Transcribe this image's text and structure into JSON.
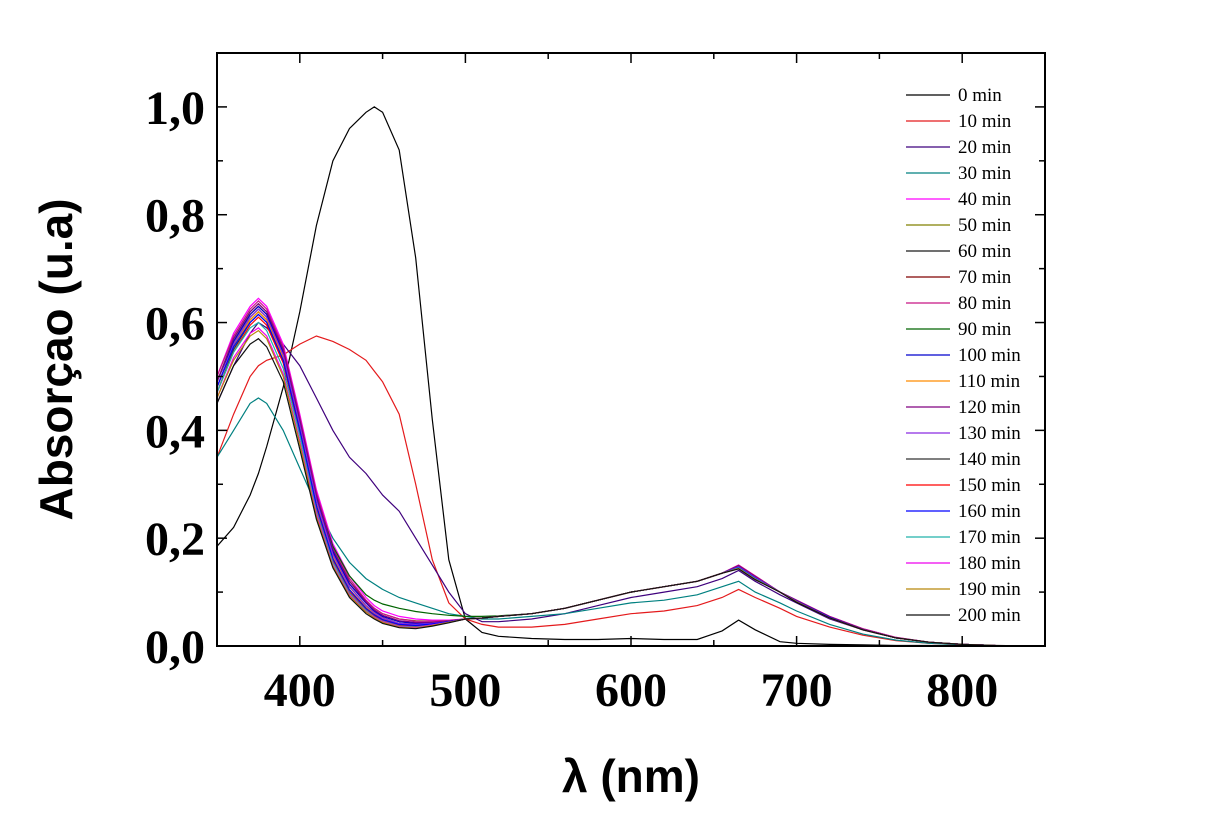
{
  "chart_data": {
    "type": "line",
    "xlabel": "λ (nm)",
    "ylabel": "Absorçao (u.a)",
    "xlim": [
      350,
      850
    ],
    "ylim": [
      0,
      1.1
    ],
    "x_ticks": [
      {
        "value": 400,
        "label": "400"
      },
      {
        "value": 500,
        "label": "500"
      },
      {
        "value": 600,
        "label": "600"
      },
      {
        "value": 700,
        "label": "700"
      },
      {
        "value": 800,
        "label": "800"
      }
    ],
    "y_ticks": [
      {
        "value": 0.0,
        "label": "0,0"
      },
      {
        "value": 0.2,
        "label": "0,2"
      },
      {
        "value": 0.4,
        "label": "0,4"
      },
      {
        "value": 0.6,
        "label": "0,6"
      },
      {
        "value": 0.8,
        "label": "0,8"
      },
      {
        "value": 1.0,
        "label": "1,0"
      }
    ],
    "legend_position": "top-right",
    "x": [
      350,
      360,
      370,
      375,
      380,
      390,
      400,
      410,
      420,
      430,
      440,
      445,
      450,
      460,
      470,
      480,
      490,
      500,
      510,
      520,
      540,
      560,
      580,
      600,
      620,
      640,
      655,
      665,
      675,
      690,
      700,
      720,
      740,
      760,
      780,
      800,
      820,
      850
    ],
    "series": [
      {
        "name": "0 min",
        "color": "#000000",
        "values": [
          0.185,
          0.22,
          0.28,
          0.32,
          0.37,
          0.48,
          0.62,
          0.78,
          0.9,
          0.96,
          0.99,
          1.0,
          0.99,
          0.92,
          0.72,
          0.42,
          0.16,
          0.05,
          0.025,
          0.018,
          0.014,
          0.012,
          0.012,
          0.014,
          0.012,
          0.012,
          0.028,
          0.048,
          0.03,
          0.008,
          0.005,
          0.003,
          0.002,
          0.001,
          0.001,
          0.0,
          0.0,
          0.0
        ]
      },
      {
        "name": "10 min",
        "color": "#e41a1c",
        "values": [
          0.35,
          0.43,
          0.5,
          0.52,
          0.53,
          0.54,
          0.56,
          0.575,
          0.565,
          0.55,
          0.53,
          0.51,
          0.49,
          0.43,
          0.3,
          0.16,
          0.08,
          0.05,
          0.04,
          0.035,
          0.035,
          0.04,
          0.05,
          0.06,
          0.065,
          0.075,
          0.09,
          0.105,
          0.09,
          0.07,
          0.055,
          0.035,
          0.02,
          0.01,
          0.005,
          0.002,
          0.001,
          0.0
        ]
      },
      {
        "name": "20 min",
        "color": "#3f007d",
        "values": [
          0.45,
          0.52,
          0.58,
          0.6,
          0.59,
          0.56,
          0.52,
          0.46,
          0.4,
          0.35,
          0.32,
          0.3,
          0.28,
          0.25,
          0.2,
          0.15,
          0.1,
          0.06,
          0.045,
          0.045,
          0.05,
          0.06,
          0.075,
          0.09,
          0.1,
          0.11,
          0.125,
          0.14,
          0.12,
          0.095,
          0.08,
          0.05,
          0.03,
          0.015,
          0.007,
          0.003,
          0.001,
          0.0
        ]
      },
      {
        "name": "30 min",
        "color": "#008080",
        "values": [
          0.35,
          0.4,
          0.45,
          0.46,
          0.45,
          0.4,
          0.33,
          0.26,
          0.2,
          0.155,
          0.125,
          0.115,
          0.105,
          0.09,
          0.08,
          0.07,
          0.06,
          0.055,
          0.05,
          0.05,
          0.055,
          0.06,
          0.07,
          0.08,
          0.085,
          0.095,
          0.11,
          0.12,
          0.1,
          0.08,
          0.065,
          0.04,
          0.022,
          0.011,
          0.005,
          0.002,
          0.001,
          0.0
        ]
      },
      {
        "name": "40 min",
        "color": "#ff00ff",
        "values": [
          0.5,
          0.58,
          0.63,
          0.645,
          0.63,
          0.56,
          0.43,
          0.29,
          0.19,
          0.13,
          0.09,
          0.075,
          0.065,
          0.055,
          0.05,
          0.048,
          0.048,
          0.05,
          0.052,
          0.055,
          0.06,
          0.07,
          0.085,
          0.1,
          0.11,
          0.12,
          0.135,
          0.15,
          0.13,
          0.1,
          0.085,
          0.055,
          0.032,
          0.016,
          0.007,
          0.003,
          0.001,
          0.0
        ]
      },
      {
        "name": "50 min",
        "color": "#808000",
        "values": [
          0.49,
          0.57,
          0.62,
          0.635,
          0.62,
          0.55,
          0.42,
          0.28,
          0.18,
          0.12,
          0.085,
          0.07,
          0.06,
          0.05,
          0.047,
          0.046,
          0.047,
          0.05,
          0.052,
          0.055,
          0.06,
          0.07,
          0.085,
          0.1,
          0.11,
          0.12,
          0.135,
          0.148,
          0.128,
          0.1,
          0.084,
          0.054,
          0.031,
          0.015,
          0.007,
          0.003,
          0.001,
          0.0
        ]
      },
      {
        "name": "60 min",
        "color": "#1a1a1a",
        "values": [
          0.48,
          0.56,
          0.61,
          0.625,
          0.61,
          0.54,
          0.41,
          0.27,
          0.17,
          0.11,
          0.075,
          0.062,
          0.052,
          0.042,
          0.04,
          0.042,
          0.045,
          0.05,
          0.052,
          0.055,
          0.06,
          0.07,
          0.085,
          0.1,
          0.11,
          0.12,
          0.135,
          0.147,
          0.127,
          0.1,
          0.083,
          0.053,
          0.03,
          0.015,
          0.007,
          0.003,
          0.001,
          0.0
        ]
      },
      {
        "name": "70 min",
        "color": "#800000",
        "values": [
          0.49,
          0.565,
          0.615,
          0.63,
          0.615,
          0.545,
          0.415,
          0.275,
          0.175,
          0.115,
          0.08,
          0.065,
          0.055,
          0.045,
          0.042,
          0.043,
          0.046,
          0.05,
          0.052,
          0.055,
          0.06,
          0.07,
          0.085,
          0.1,
          0.11,
          0.12,
          0.135,
          0.148,
          0.128,
          0.1,
          0.084,
          0.054,
          0.031,
          0.015,
          0.007,
          0.003,
          0.001,
          0.0
        ]
      },
      {
        "name": "80 min",
        "color": "#c71585",
        "values": [
          0.5,
          0.575,
          0.625,
          0.64,
          0.625,
          0.555,
          0.425,
          0.285,
          0.185,
          0.125,
          0.085,
          0.07,
          0.06,
          0.05,
          0.046,
          0.046,
          0.047,
          0.05,
          0.052,
          0.055,
          0.06,
          0.07,
          0.085,
          0.1,
          0.11,
          0.12,
          0.135,
          0.15,
          0.13,
          0.1,
          0.085,
          0.055,
          0.032,
          0.016,
          0.007,
          0.003,
          0.001,
          0.0
        ]
      },
      {
        "name": "90 min",
        "color": "#006400",
        "values": [
          0.48,
          0.555,
          0.605,
          0.62,
          0.605,
          0.535,
          0.41,
          0.275,
          0.185,
          0.13,
          0.095,
          0.085,
          0.078,
          0.07,
          0.064,
          0.06,
          0.057,
          0.055,
          0.055,
          0.056,
          0.06,
          0.07,
          0.085,
          0.1,
          0.11,
          0.12,
          0.135,
          0.148,
          0.128,
          0.1,
          0.084,
          0.054,
          0.031,
          0.015,
          0.007,
          0.003,
          0.001,
          0.0
        ]
      },
      {
        "name": "100 min",
        "color": "#0000cd",
        "values": [
          0.49,
          0.565,
          0.615,
          0.63,
          0.615,
          0.545,
          0.415,
          0.275,
          0.175,
          0.115,
          0.08,
          0.065,
          0.055,
          0.045,
          0.042,
          0.043,
          0.046,
          0.05,
          0.052,
          0.055,
          0.06,
          0.07,
          0.085,
          0.1,
          0.11,
          0.12,
          0.135,
          0.148,
          0.128,
          0.1,
          0.084,
          0.054,
          0.031,
          0.015,
          0.007,
          0.003,
          0.001,
          0.0
        ]
      },
      {
        "name": "110 min",
        "color": "#ff8c00",
        "values": [
          0.48,
          0.555,
          0.605,
          0.62,
          0.605,
          0.535,
          0.405,
          0.265,
          0.165,
          0.105,
          0.072,
          0.06,
          0.05,
          0.04,
          0.038,
          0.041,
          0.045,
          0.05,
          0.052,
          0.055,
          0.06,
          0.07,
          0.085,
          0.1,
          0.11,
          0.12,
          0.135,
          0.146,
          0.126,
          0.1,
          0.083,
          0.053,
          0.03,
          0.015,
          0.007,
          0.003,
          0.001,
          0.0
        ]
      },
      {
        "name": "120 min",
        "color": "#800080",
        "values": [
          0.49,
          0.57,
          0.62,
          0.635,
          0.62,
          0.55,
          0.42,
          0.28,
          0.18,
          0.12,
          0.082,
          0.067,
          0.057,
          0.047,
          0.044,
          0.044,
          0.046,
          0.05,
          0.052,
          0.055,
          0.06,
          0.07,
          0.085,
          0.1,
          0.11,
          0.12,
          0.135,
          0.149,
          0.129,
          0.1,
          0.084,
          0.054,
          0.031,
          0.015,
          0.007,
          0.003,
          0.001,
          0.0
        ]
      },
      {
        "name": "130 min",
        "color": "#8a2be2",
        "values": [
          0.48,
          0.56,
          0.61,
          0.625,
          0.61,
          0.54,
          0.41,
          0.27,
          0.17,
          0.11,
          0.075,
          0.062,
          0.052,
          0.042,
          0.04,
          0.042,
          0.045,
          0.05,
          0.052,
          0.055,
          0.06,
          0.07,
          0.085,
          0.1,
          0.11,
          0.12,
          0.135,
          0.147,
          0.127,
          0.1,
          0.083,
          0.053,
          0.03,
          0.015,
          0.007,
          0.003,
          0.001,
          0.0
        ]
      },
      {
        "name": "140 min",
        "color": "#333333",
        "values": [
          0.47,
          0.55,
          0.6,
          0.615,
          0.6,
          0.53,
          0.4,
          0.26,
          0.16,
          0.1,
          0.068,
          0.056,
          0.047,
          0.038,
          0.036,
          0.04,
          0.044,
          0.05,
          0.052,
          0.055,
          0.06,
          0.07,
          0.085,
          0.1,
          0.11,
          0.12,
          0.135,
          0.145,
          0.125,
          0.1,
          0.082,
          0.052,
          0.03,
          0.015,
          0.007,
          0.003,
          0.001,
          0.0
        ]
      },
      {
        "name": "150 min",
        "color": "#ff0000",
        "values": [
          0.47,
          0.545,
          0.595,
          0.61,
          0.595,
          0.525,
          0.395,
          0.255,
          0.158,
          0.1,
          0.068,
          0.056,
          0.047,
          0.038,
          0.036,
          0.04,
          0.044,
          0.05,
          0.052,
          0.055,
          0.06,
          0.07,
          0.085,
          0.1,
          0.11,
          0.12,
          0.135,
          0.145,
          0.125,
          0.1,
          0.082,
          0.052,
          0.03,
          0.015,
          0.007,
          0.003,
          0.001,
          0.0
        ]
      },
      {
        "name": "160 min",
        "color": "#0000ff",
        "values": [
          0.48,
          0.555,
          0.6,
          0.615,
          0.6,
          0.53,
          0.4,
          0.26,
          0.162,
          0.104,
          0.07,
          0.058,
          0.049,
          0.04,
          0.038,
          0.041,
          0.045,
          0.05,
          0.052,
          0.055,
          0.06,
          0.07,
          0.085,
          0.1,
          0.11,
          0.12,
          0.135,
          0.146,
          0.126,
          0.1,
          0.083,
          0.053,
          0.03,
          0.015,
          0.007,
          0.003,
          0.001,
          0.0
        ]
      },
      {
        "name": "170 min",
        "color": "#20b2aa",
        "values": [
          0.47,
          0.545,
          0.59,
          0.6,
          0.585,
          0.515,
          0.39,
          0.25,
          0.155,
          0.098,
          0.066,
          0.054,
          0.046,
          0.037,
          0.035,
          0.039,
          0.044,
          0.05,
          0.052,
          0.055,
          0.06,
          0.07,
          0.085,
          0.1,
          0.11,
          0.12,
          0.135,
          0.145,
          0.125,
          0.1,
          0.082,
          0.052,
          0.03,
          0.015,
          0.007,
          0.003,
          0.001,
          0.0
        ]
      },
      {
        "name": "180 min",
        "color": "#ee00ee",
        "values": [
          0.46,
          0.535,
          0.58,
          0.59,
          0.575,
          0.505,
          0.38,
          0.245,
          0.15,
          0.095,
          0.064,
          0.053,
          0.045,
          0.036,
          0.034,
          0.039,
          0.044,
          0.05,
          0.052,
          0.055,
          0.06,
          0.07,
          0.085,
          0.1,
          0.11,
          0.12,
          0.135,
          0.144,
          0.124,
          0.1,
          0.082,
          0.052,
          0.03,
          0.015,
          0.007,
          0.003,
          0.001,
          0.0
        ]
      },
      {
        "name": "190 min",
        "color": "#b8860b",
        "values": [
          0.46,
          0.53,
          0.575,
          0.585,
          0.57,
          0.5,
          0.375,
          0.24,
          0.148,
          0.093,
          0.063,
          0.052,
          0.044,
          0.035,
          0.033,
          0.038,
          0.044,
          0.05,
          0.052,
          0.055,
          0.06,
          0.07,
          0.085,
          0.1,
          0.11,
          0.12,
          0.135,
          0.144,
          0.124,
          0.1,
          0.082,
          0.052,
          0.03,
          0.015,
          0.007,
          0.003,
          0.001,
          0.0
        ]
      },
      {
        "name": "200 min",
        "color": "#111111",
        "values": [
          0.45,
          0.52,
          0.56,
          0.57,
          0.555,
          0.49,
          0.365,
          0.235,
          0.145,
          0.09,
          0.06,
          0.05,
          0.042,
          0.034,
          0.032,
          0.037,
          0.043,
          0.05,
          0.052,
          0.055,
          0.06,
          0.07,
          0.085,
          0.1,
          0.11,
          0.12,
          0.135,
          0.143,
          0.123,
          0.1,
          0.081,
          0.052,
          0.03,
          0.015,
          0.007,
          0.003,
          0.001,
          0.0
        ]
      }
    ]
  }
}
